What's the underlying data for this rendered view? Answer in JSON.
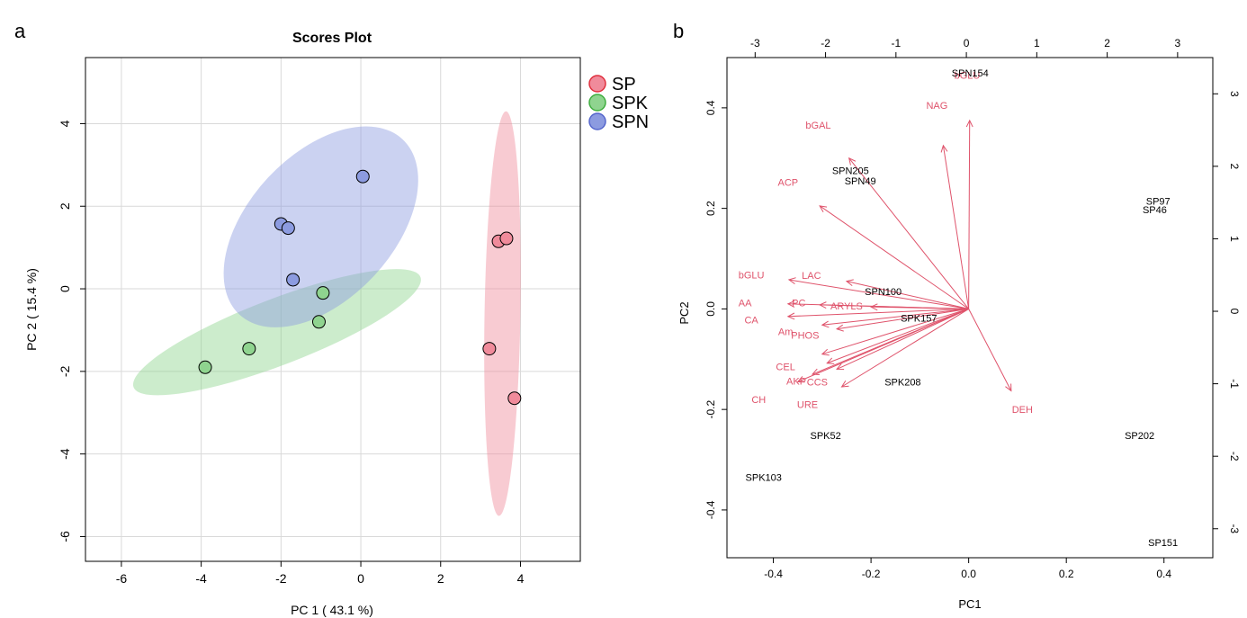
{
  "panel_a_letter": "a",
  "panel_b_letter": "b",
  "chart_data": [
    {
      "type": "scatter",
      "title": "Scores Plot",
      "xlabel": "PC 1 ( 43.1 %)",
      "ylabel": "PC 2 ( 15.4 %)",
      "xlim": [
        -6.9,
        5.5
      ],
      "ylim": [
        -6.6,
        5.6
      ],
      "xticks": [
        -6,
        -4,
        -2,
        0,
        2,
        4
      ],
      "yticks": [
        -6,
        -4,
        -2,
        0,
        2,
        4
      ],
      "grid": true,
      "legend_position": "outside-top-right",
      "series": [
        {
          "name": "SP",
          "color": "#f08b9b",
          "points": [
            [
              3.45,
              1.15
            ],
            [
              3.65,
              1.22
            ],
            [
              3.22,
              -1.45
            ],
            [
              3.85,
              -2.65
            ]
          ],
          "ellipse": {
            "cx": 3.55,
            "cy": -0.6,
            "rx": 0.45,
            "ry": 4.9,
            "angle_deg": -1
          }
        },
        {
          "name": "SPK",
          "color": "#8fd48f",
          "points": [
            [
              -3.9,
              -1.9
            ],
            [
              -2.8,
              -1.45
            ],
            [
              -1.05,
              -0.8
            ],
            [
              -0.95,
              -0.1
            ]
          ],
          "ellipse": {
            "cx": -2.1,
            "cy": -1.05,
            "rx": 3.85,
            "ry": 0.8,
            "angle_deg": 21
          }
        },
        {
          "name": "SPN",
          "color": "#8c9be0",
          "points": [
            [
              0.05,
              2.72
            ],
            [
              -2.0,
              1.57
            ],
            [
              -1.82,
              1.47
            ],
            [
              -1.7,
              0.22
            ]
          ],
          "ellipse": {
            "cx": -1.0,
            "cy": 1.5,
            "rx": 3.0,
            "ry": 1.75,
            "angle_deg": 47
          }
        }
      ]
    },
    {
      "type": "scatter",
      "subtype": "biplot",
      "title": "",
      "xlabel": "PC1",
      "ylabel": "PC2",
      "xlim": [
        -0.495,
        0.5
      ],
      "ylim": [
        -0.495,
        0.5
      ],
      "xticks": [
        -0.4,
        -0.2,
        0.0,
        0.2,
        0.4
      ],
      "yticks": [
        -0.4,
        -0.2,
        0.0,
        0.2,
        0.4
      ],
      "xticklabels": [
        "-0.4",
        "-0.2",
        "0.0",
        "0.2",
        "0.4"
      ],
      "yticklabels": [
        "-0.4",
        "-0.2",
        "0.0",
        "0.2",
        "0.4"
      ],
      "top_xlim": [
        -3.4,
        3.5
      ],
      "top_xticks": [
        -3,
        -2,
        -1,
        0,
        1,
        2,
        3
      ],
      "right_ylim": [
        -3.4,
        3.5
      ],
      "right_yticks": [
        -3,
        -2,
        -1,
        0,
        1,
        2,
        3
      ],
      "sample_color": "#000000",
      "variable_color": "#df536b",
      "samples": [
        {
          "label": "SPN154",
          "x": 0.003,
          "y": 0.47
        },
        {
          "label": "SPN205",
          "x": -0.242,
          "y": 0.275
        },
        {
          "label": "SPN49",
          "x": -0.222,
          "y": 0.255
        },
        {
          "label": "SP97",
          "x": 0.388,
          "y": 0.215
        },
        {
          "label": "SP46",
          "x": 0.381,
          "y": 0.198
        },
        {
          "label": "SPN100",
          "x": -0.175,
          "y": 0.035
        },
        {
          "label": "SPK157",
          "x": -0.102,
          "y": -0.018
        },
        {
          "label": "SPK208",
          "x": -0.135,
          "y": -0.145
        },
        {
          "label": "SPK52",
          "x": -0.293,
          "y": -0.252
        },
        {
          "label": "SPK103",
          "x": -0.42,
          "y": -0.335
        },
        {
          "label": "SP202",
          "x": 0.35,
          "y": -0.252
        },
        {
          "label": "SP151",
          "x": 0.398,
          "y": -0.465
        }
      ],
      "loadings": [
        {
          "label": "NAG",
          "x": -0.052,
          "y": 0.325,
          "lx": -0.065,
          "ly": 0.405
        },
        {
          "label": "bGLU",
          "x": 0.002,
          "y": 0.375,
          "lx": -0.003,
          "ly": 0.465
        },
        {
          "label": "bGAL",
          "x": -0.245,
          "y": 0.3,
          "lx": -0.308,
          "ly": 0.366
        },
        {
          "label": "ACP",
          "x": -0.305,
          "y": 0.205,
          "lx": -0.37,
          "ly": 0.252
        },
        {
          "label": "bGLU",
          "x": -0.368,
          "y": 0.058,
          "lx": -0.445,
          "ly": 0.068
        },
        {
          "label": "LAC",
          "x": -0.25,
          "y": 0.055,
          "lx": -0.322,
          "ly": 0.067
        },
        {
          "label": "AA",
          "x": -0.37,
          "y": 0.01,
          "lx": -0.458,
          "ly": 0.012
        },
        {
          "label": "PC",
          "x": -0.305,
          "y": 0.008,
          "lx": -0.348,
          "ly": 0.012
        },
        {
          "label": "ARYLS",
          "x": -0.2,
          "y": 0.004,
          "lx": -0.25,
          "ly": 0.006
        },
        {
          "label": "CA",
          "x": -0.37,
          "y": -0.015,
          "lx": -0.445,
          "ly": -0.022
        },
        {
          "label": "Am",
          "x": -0.3,
          "y": -0.032,
          "lx": -0.375,
          "ly": -0.045
        },
        {
          "label": "PHOS",
          "x": -0.27,
          "y": -0.04,
          "lx": -0.335,
          "ly": -0.052
        },
        {
          "label": "CEL",
          "x": -0.3,
          "y": -0.09,
          "lx": -0.375,
          "ly": -0.115
        },
        {
          "label": "AKP",
          "x": -0.35,
          "y": -0.145,
          "lx": -0.353,
          "ly": -0.143
        },
        {
          "label": "CCS",
          "x": -0.27,
          "y": -0.12,
          "lx": -0.31,
          "ly": -0.145
        },
        {
          "label": "CH",
          "x": -0.26,
          "y": -0.155,
          "lx": -0.43,
          "ly": -0.18
        },
        {
          "label": "URE",
          "x": -0.32,
          "y": -0.13,
          "lx": -0.33,
          "ly": -0.19
        },
        {
          "label": "DEH",
          "x": 0.087,
          "y": -0.163,
          "lx": 0.11,
          "ly": -0.2
        },
        {
          "label": "",
          "x": -0.29,
          "y": -0.108
        }
      ]
    }
  ]
}
